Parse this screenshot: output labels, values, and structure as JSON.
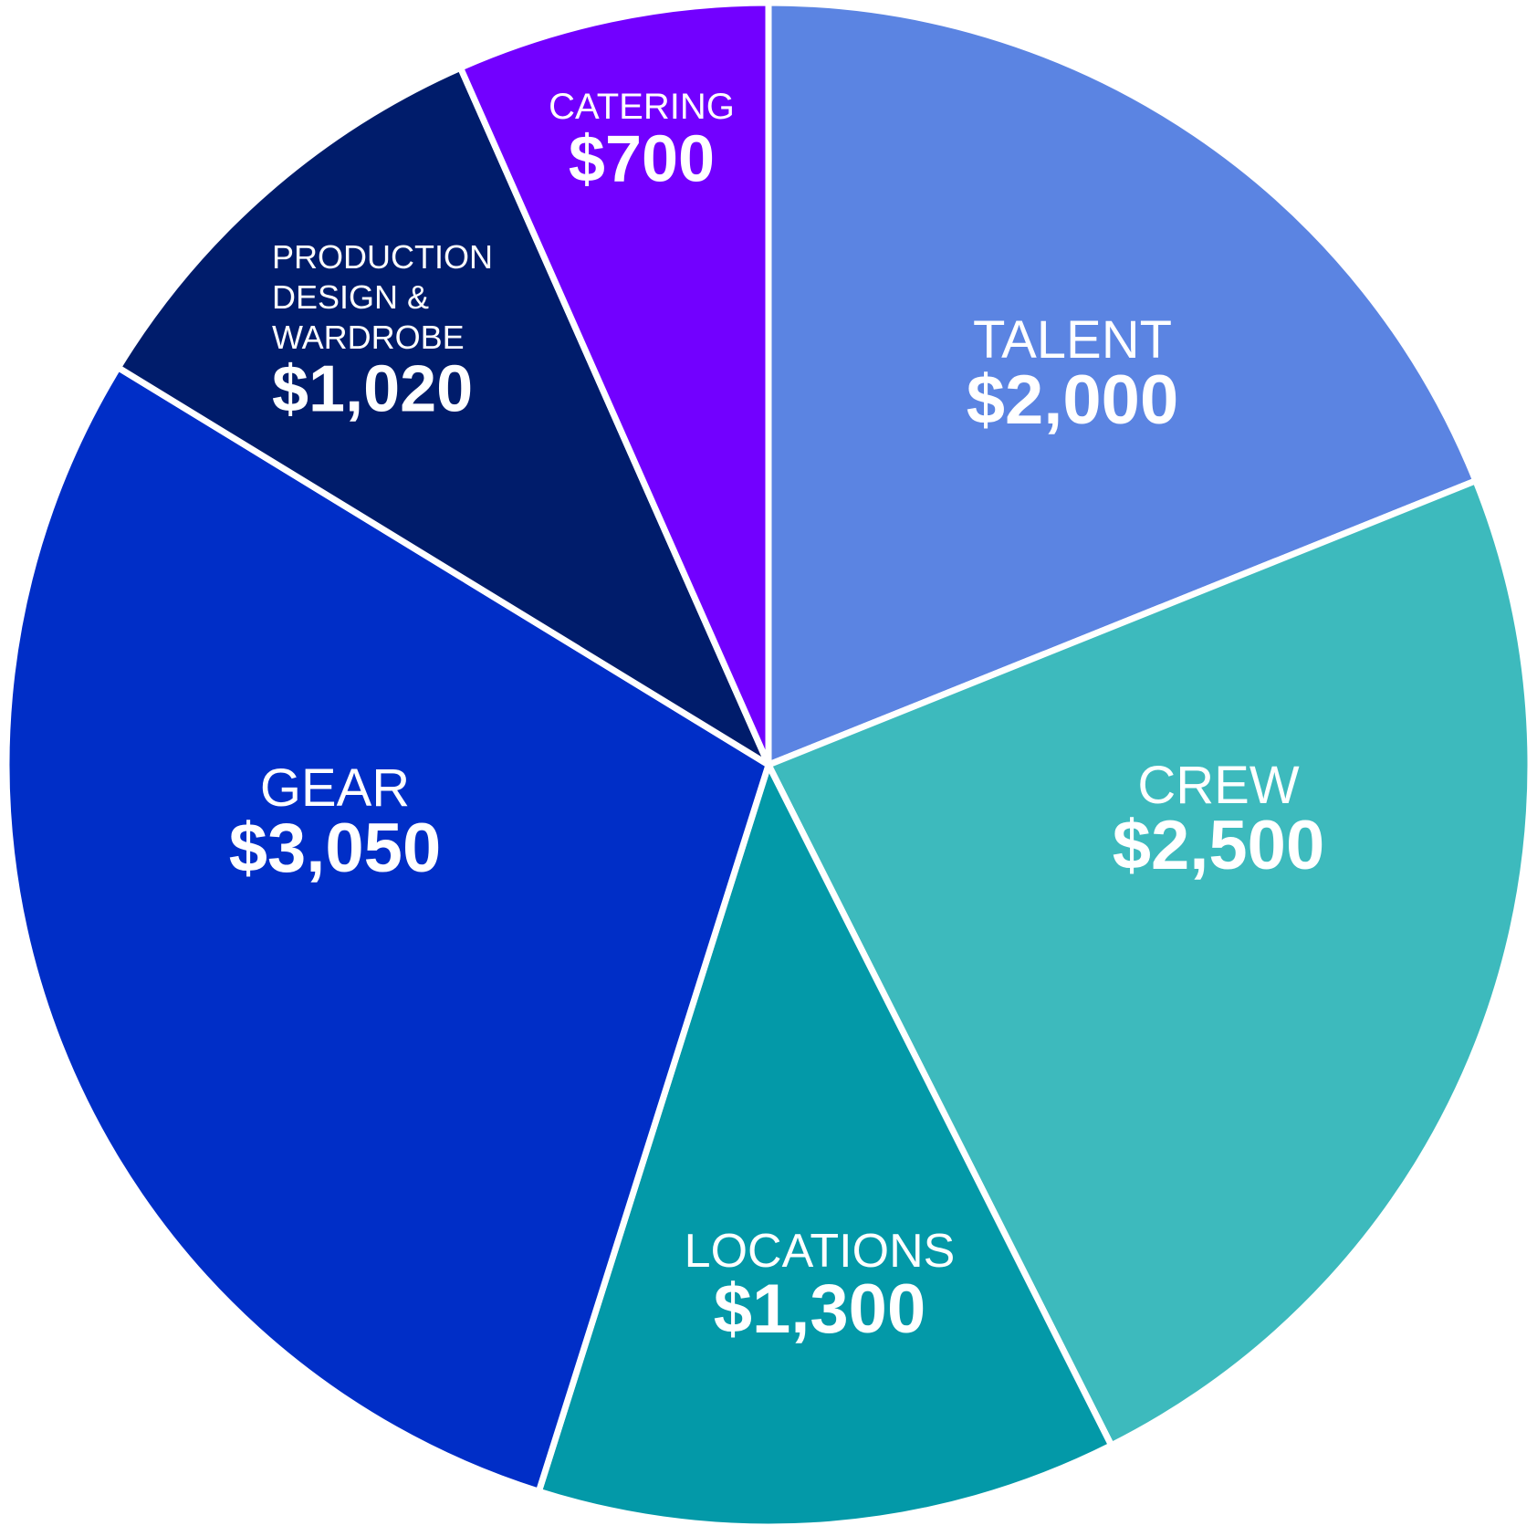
{
  "chart_data": {
    "type": "pie",
    "start": "top",
    "direction": "clockwise",
    "slices": [
      {
        "label": [
          "TALENT"
        ],
        "value_label": "$2,000",
        "value": 2000,
        "color": "#5b84e2"
      },
      {
        "label": [
          "CREW"
        ],
        "value_label": "$2,500",
        "value": 2500,
        "color": "#3dbabd"
      },
      {
        "label": [
          "LOCATIONS"
        ],
        "value_label": "$1,300",
        "value": 1300,
        "color": "#0399a8"
      },
      {
        "label": [
          "GEAR"
        ],
        "value_label": "$3,050",
        "value": 3050,
        "color": "#002ec7"
      },
      {
        "label": [
          "PRODUCTION",
          "DESIGN &",
          "WARDROBE"
        ],
        "value_label": "$1,020",
        "value": 1020,
        "color": "#001c6b"
      },
      {
        "label": [
          "CATERING"
        ],
        "value_label": "$700",
        "value": 700,
        "color": "#7200ff"
      }
    ]
  }
}
